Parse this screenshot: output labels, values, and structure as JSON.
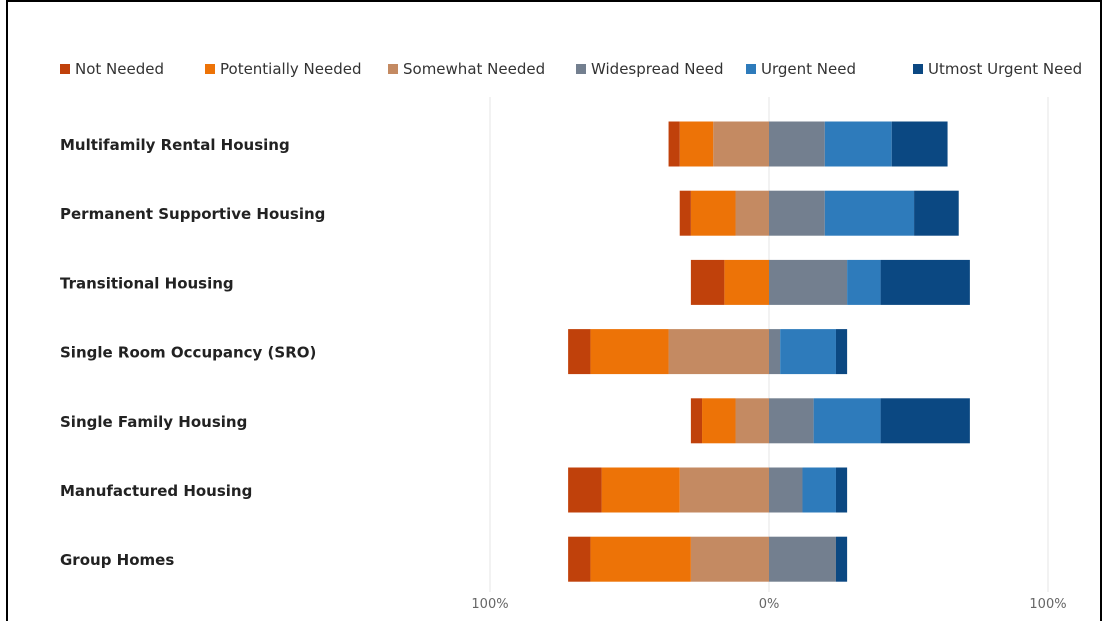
{
  "chart_data": {
    "type": "bar",
    "orientation": "horizontal",
    "stacking": "diverging",
    "legend_position": "top",
    "grid": true,
    "xlim": [
      -100,
      100
    ],
    "tick_labels": [
      "100%",
      "0%",
      "100%"
    ],
    "categories": [
      "Multifamily Rental Housing",
      "Permanent Supportive Housing",
      "Transitional Housing",
      "Single Room Occupancy (SRO)",
      "Single Family Housing",
      "Manufactured Housing",
      "Group Homes"
    ],
    "series": [
      {
        "name": "Not Needed",
        "side": "negative",
        "color": "#c0410b",
        "values": [
          4,
          4,
          12,
          8,
          4,
          12,
          8
        ]
      },
      {
        "name": "Potentially Needed",
        "side": "negative",
        "color": "#ed7307",
        "values": [
          12,
          16,
          16,
          28,
          12,
          28,
          36
        ]
      },
      {
        "name": "Somewhat Needed",
        "side": "negative",
        "color": "#c48a62",
        "values": [
          20,
          12,
          0,
          36,
          12,
          32,
          28
        ]
      },
      {
        "name": "Widespread Need",
        "side": "positive",
        "color": "#737f8f",
        "values": [
          20,
          20,
          28,
          4,
          16,
          12,
          24
        ]
      },
      {
        "name": "Urgent Need",
        "side": "positive",
        "color": "#2e7bbb",
        "values": [
          24,
          32,
          12,
          20,
          24,
          12,
          0
        ]
      },
      {
        "name": "Utmost Urgent Need",
        "side": "positive",
        "color": "#0b4882",
        "values": [
          20,
          16,
          32,
          4,
          32,
          4,
          4
        ]
      }
    ]
  }
}
